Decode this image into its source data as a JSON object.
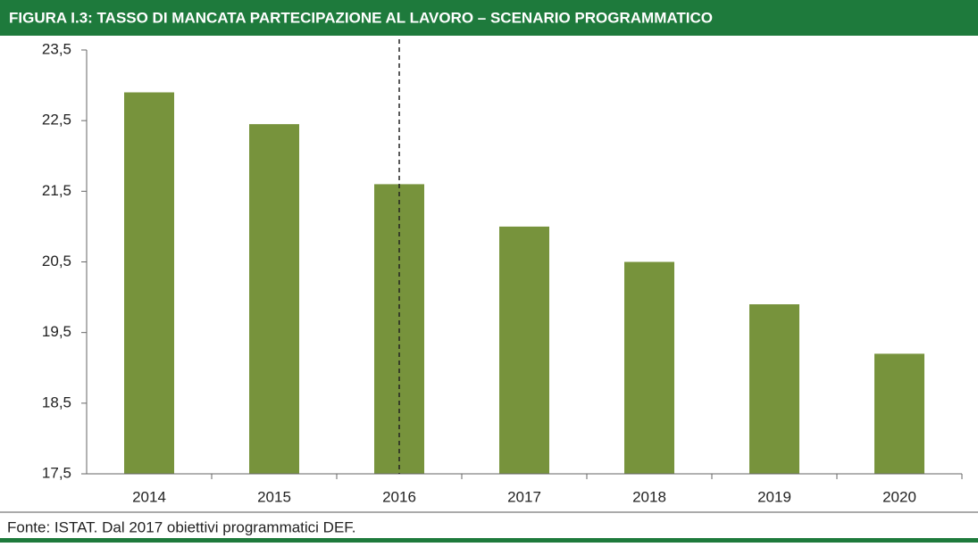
{
  "chart_data": {
    "type": "bar",
    "title": "FIGURA I.3: TASSO DI MANCATA PARTECIPAZIONE AL LAVORO – SCENARIO PROGRAMMATICO",
    "source": "Fonte: ISTAT. Dal 2017 obiettivi programmatici DEF.",
    "categories": [
      "2014",
      "2015",
      "2016",
      "2017",
      "2018",
      "2019",
      "2020"
    ],
    "values": [
      22.9,
      22.45,
      21.6,
      21.0,
      20.5,
      19.9,
      19.2
    ],
    "color": "#77933c",
    "vline": "2016",
    "ylim": [
      17.5,
      23.5
    ],
    "yticks": [
      {
        "value": 17.5,
        "label": "17,5"
      },
      {
        "value": 18.5,
        "label": "18,5"
      },
      {
        "value": 19.5,
        "label": "19,5"
      },
      {
        "value": 20.5,
        "label": "20,5"
      },
      {
        "value": 21.5,
        "label": "21,5"
      },
      {
        "value": 22.5,
        "label": "22,5"
      },
      {
        "value": 23.5,
        "label": "23,5"
      }
    ],
    "grid": false
  }
}
